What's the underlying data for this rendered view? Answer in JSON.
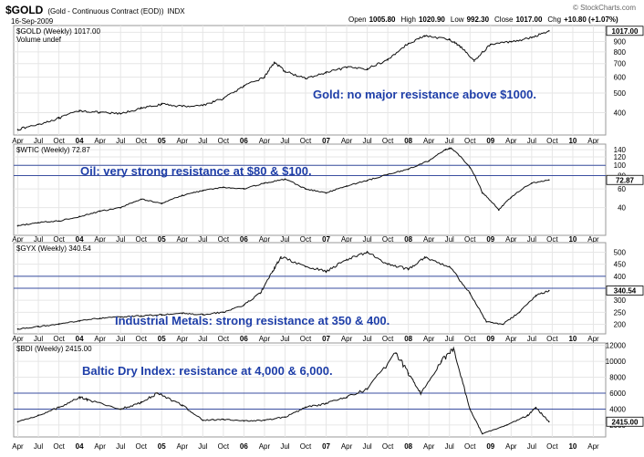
{
  "header": {
    "symbol": "$GOLD",
    "description": "(Gold - Continuous Contract (EOD))",
    "exchange": "INDX",
    "date": "16-Sep-2009",
    "stats": [
      {
        "key": "Open",
        "value": "1005.80"
      },
      {
        "key": "High",
        "value": "1020.90"
      },
      {
        "key": "Low",
        "value": "992.30"
      },
      {
        "key": "Close",
        "value": "1017.00"
      },
      {
        "key": "Chg",
        "value": "+10.80 (+1.07%)"
      }
    ],
    "brand": "© StockCharts.com"
  },
  "x_axis": {
    "labels": [
      "Apr",
      "Jul",
      "Oct",
      "04",
      "Apr",
      "Jul",
      "Oct",
      "05",
      "Apr",
      "Jul",
      "Oct",
      "06",
      "Apr",
      "Jul",
      "Oct",
      "07",
      "Apr",
      "Jul",
      "Oct",
      "08",
      "Apr",
      "Jul",
      "Oct",
      "09",
      "Apr",
      "Jul",
      "Oct",
      "10",
      "Apr"
    ],
    "year_labels": [
      "04",
      "05",
      "06",
      "07",
      "08",
      "09",
      "10"
    ]
  },
  "chart_data": [
    {
      "type": "line",
      "panel": "gold",
      "label": "$GOLD (Weekly) 1017.00",
      "sublabel": "Volume undef",
      "last_value": "1017.00",
      "annotation": "Gold: no major resistance above $1000.",
      "yscale": "log",
      "ylim": [
        310,
        1080
      ],
      "yticks": [
        400,
        500,
        600,
        700,
        800,
        900,
        1000
      ],
      "resistance": [],
      "x": [
        2003.25,
        2003.5,
        2003.75,
        2004.0,
        2004.25,
        2004.5,
        2004.75,
        2005.0,
        2005.25,
        2005.5,
        2005.75,
        2006.0,
        2006.25,
        2006.37,
        2006.5,
        2006.75,
        2007.0,
        2007.25,
        2007.5,
        2007.75,
        2008.0,
        2008.2,
        2008.5,
        2008.62,
        2008.8,
        2009.0,
        2009.25,
        2009.5,
        2009.71
      ],
      "values": [
        330,
        350,
        375,
        410,
        400,
        395,
        420,
        440,
        430,
        435,
        470,
        540,
        600,
        710,
        640,
        590,
        630,
        670,
        660,
        730,
        880,
        960,
        920,
        860,
        720,
        870,
        900,
        940,
        1017
      ]
    },
    {
      "type": "line",
      "panel": "oil",
      "label": "$WTIC (Weekly) 72.87",
      "last_value": "72.87",
      "annotation": "Oil: very strong resistance at $80 & $100.",
      "yscale": "log",
      "ylim": [
        22,
        158
      ],
      "yticks": [
        40,
        60,
        80,
        100,
        120,
        140
      ],
      "resistance": [
        80,
        100
      ],
      "x": [
        2003.25,
        2003.5,
        2003.75,
        2004.0,
        2004.25,
        2004.5,
        2004.75,
        2005.0,
        2005.25,
        2005.5,
        2005.75,
        2006.0,
        2006.25,
        2006.5,
        2006.75,
        2007.0,
        2007.25,
        2007.5,
        2007.75,
        2008.0,
        2008.25,
        2008.45,
        2008.52,
        2008.75,
        2008.9,
        2009.1,
        2009.25,
        2009.5,
        2009.71
      ],
      "values": [
        27,
        29,
        30,
        33,
        37,
        40,
        48,
        44,
        52,
        58,
        62,
        60,
        68,
        74,
        60,
        55,
        64,
        72,
        82,
        92,
        110,
        140,
        145,
        95,
        55,
        38,
        50,
        68,
        72.87
      ]
    },
    {
      "type": "line",
      "panel": "metals",
      "label": "$GYX (Weekly) 340.54",
      "last_value": "340.54",
      "annotation": "Industrial Metals: strong resistance at 350 & 400.",
      "yscale": "linear",
      "ylim": [
        160,
        540
      ],
      "yticks": [
        200,
        250,
        300,
        350,
        400,
        450,
        500
      ],
      "resistance": [
        350,
        400
      ],
      "x": [
        2003.25,
        2003.5,
        2003.75,
        2004.0,
        2004.25,
        2004.5,
        2004.75,
        2005.0,
        2005.25,
        2005.5,
        2005.75,
        2006.0,
        2006.2,
        2006.35,
        2006.45,
        2006.75,
        2007.0,
        2007.25,
        2007.5,
        2007.75,
        2008.0,
        2008.2,
        2008.5,
        2008.75,
        2008.95,
        2009.15,
        2009.35,
        2009.55,
        2009.71
      ],
      "values": [
        180,
        190,
        200,
        215,
        225,
        230,
        235,
        240,
        245,
        240,
        250,
        280,
        330,
        420,
        480,
        440,
        420,
        470,
        500,
        450,
        430,
        480,
        440,
        330,
        210,
        200,
        250,
        320,
        340.54
      ]
    },
    {
      "type": "line",
      "panel": "bdi",
      "label": "$BDI (Weekly) 2415.00",
      "last_value": "2415.00",
      "annotation": "Baltic Dry Index: resistance at 4,000 & 6,000.",
      "yscale": "linear",
      "ylim": [
        500,
        12300
      ],
      "yticks": [
        2000,
        4000,
        6000,
        8000,
        10000,
        12000
      ],
      "resistance": [
        4000,
        6000
      ],
      "x": [
        2003.25,
        2003.5,
        2003.75,
        2004.0,
        2004.1,
        2004.5,
        2004.75,
        2004.95,
        2005.25,
        2005.5,
        2005.75,
        2006.0,
        2006.25,
        2006.5,
        2006.75,
        2007.0,
        2007.25,
        2007.5,
        2007.85,
        2008.0,
        2008.15,
        2008.4,
        2008.55,
        2008.75,
        2008.9,
        2009.2,
        2009.45,
        2009.55,
        2009.71
      ],
      "values": [
        2400,
        3200,
        4200,
        5500,
        5200,
        4000,
        4800,
        6000,
        4500,
        2600,
        2700,
        2500,
        2600,
        3000,
        4200,
        4700,
        5500,
        6500,
        11000,
        8500,
        6000,
        10000,
        11500,
        4000,
        900,
        2000,
        3200,
        4200,
        2415
      ]
    }
  ]
}
